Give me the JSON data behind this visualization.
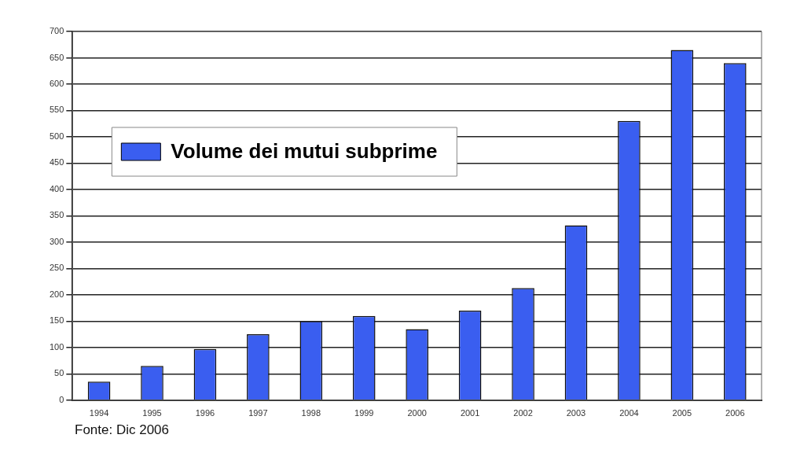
{
  "chart_data": {
    "type": "bar",
    "categories": [
      "1994",
      "1995",
      "1996",
      "1997",
      "1998",
      "1999",
      "2000",
      "2001",
      "2002",
      "2003",
      "2004",
      "2005",
      "2006"
    ],
    "series": [
      {
        "name": "Volume dei mutui subprime",
        "color": "#3a5ef0",
        "values": [
          35,
          65,
          97,
          125,
          150,
          160,
          135,
          170,
          213,
          332,
          530,
          665,
          640
        ]
      }
    ],
    "ylim": [
      0,
      700
    ],
    "yticks": [
      0,
      50,
      100,
      150,
      200,
      250,
      300,
      350,
      400,
      450,
      500,
      550,
      600,
      650,
      700
    ],
    "grid": "y",
    "legend": "top left",
    "annotations": [
      "Fonte: Dic 2006"
    ]
  }
}
